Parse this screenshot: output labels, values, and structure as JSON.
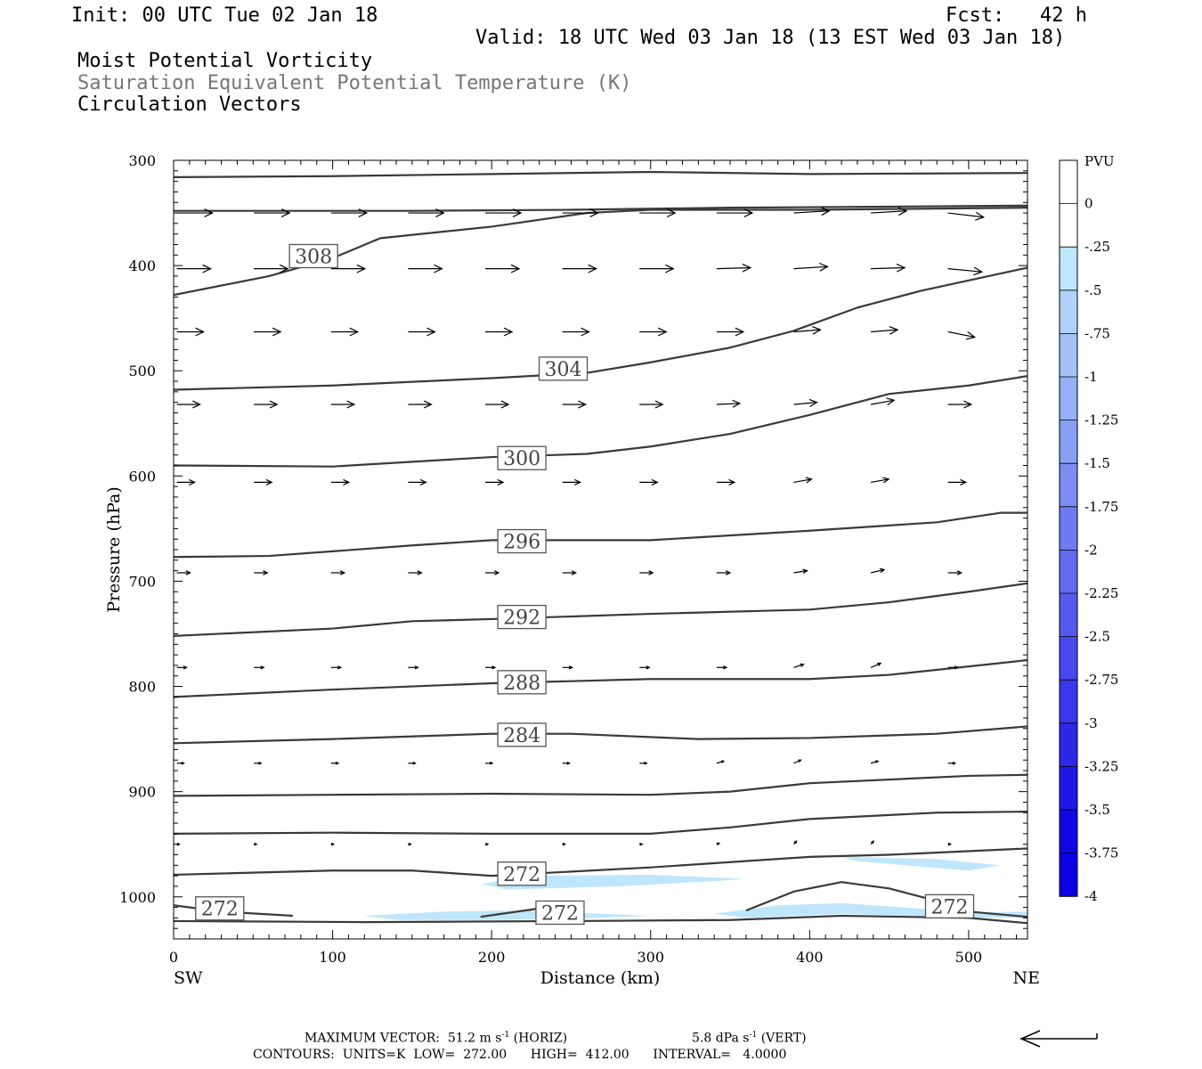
{
  "header": {
    "init": "Init: 00 UTC Tue 02 Jan 18",
    "fcst": "Fcst:   42 h",
    "valid": "Valid: 18 UTC Wed 03 Jan 18 (13 EST Wed 03 Jan 18)",
    "field1": "Moist Potential Vorticity",
    "field2": "Saturation Equivalent Potential Temperature (K)",
    "field3": "Circulation Vectors"
  },
  "footer": {
    "max_vector_label": "MAXIMUM VECTOR:",
    "max_horiz_value": "51.2 m s",
    "max_horiz_exp": "-1",
    "max_horiz_unit": "(HORIZ)",
    "max_vert_value": "5.8 dPa s",
    "max_vert_exp": "-1",
    "max_vert_unit": "(VERT)",
    "contours": "CONTOURS:  UNITS=K  LOW=  272.00      HIGH=  412.00      INTERVAL=   4.0000"
  },
  "chart_data": {
    "type": "cross-section",
    "xlabel": "Distance (km)",
    "ylabel": "Pressure (hPa)",
    "x_left_label": "SW",
    "x_right_label": "NE",
    "xlim": [
      0,
      537
    ],
    "ylim": [
      1040,
      300
    ],
    "x_ticks": [
      0,
      100,
      200,
      300,
      400,
      500
    ],
    "y_ticks": [
      300,
      400,
      500,
      600,
      700,
      800,
      900,
      1000
    ],
    "colorbar": {
      "title": "PVU",
      "levels": [
        "0",
        "-.25",
        "-.5",
        "-.75",
        "-1",
        "-1.25",
        "-1.5",
        "-1.75",
        "-2",
        "-2.25",
        "-2.5",
        "-2.75",
        "-3",
        "-3.25",
        "-3.5",
        "-3.75",
        "-4"
      ],
      "colors": [
        "#ffffff",
        "#ffffff",
        "#bfe6fb",
        "#b1d1f9",
        "#a4c0f7",
        "#97aff6",
        "#8a9ff4",
        "#7c8cf2",
        "#6f7cf1",
        "#626aef",
        "#5559ee",
        "#4848ec",
        "#3a37ea",
        "#2d27e8",
        "#2016e6",
        "#1306e5",
        "#0c00e5"
      ]
    },
    "contour_labels": [
      {
        "value": "308",
        "x": 88,
        "p": 391
      },
      {
        "value": "304",
        "x": 245,
        "p": 498
      },
      {
        "value": "300",
        "x": 219,
        "p": 583
      },
      {
        "value": "296",
        "x": 219,
        "p": 662
      },
      {
        "value": "292",
        "x": 219,
        "p": 734
      },
      {
        "value": "288",
        "x": 219,
        "p": 796
      },
      {
        "value": "284",
        "x": 219,
        "p": 846
      },
      {
        "value": "272",
        "x": 219,
        "p": 978
      },
      {
        "value": "272",
        "x": 29,
        "p": 1011
      },
      {
        "value": "272",
        "x": 243,
        "p": 1015
      },
      {
        "value": "272",
        "x": 488,
        "p": 1009
      }
    ],
    "isentropes": [
      [
        [
          0,
          316
        ],
        [
          100,
          315
        ],
        [
          200,
          313
        ],
        [
          300,
          311
        ],
        [
          400,
          313
        ],
        [
          537,
          312
        ]
      ],
      [
        [
          0,
          348
        ],
        [
          150,
          348
        ],
        [
          250,
          347
        ],
        [
          350,
          345
        ],
        [
          450,
          344
        ],
        [
          537,
          343
        ]
      ],
      [
        [
          0,
          428
        ],
        [
          60,
          410
        ],
        [
          100,
          393
        ],
        [
          130,
          374
        ],
        [
          200,
          363
        ],
        [
          260,
          350
        ],
        [
          300,
          347
        ],
        [
          400,
          347
        ],
        [
          537,
          345
        ]
      ],
      [
        [
          0,
          518
        ],
        [
          100,
          514
        ],
        [
          200,
          507
        ],
        [
          260,
          502
        ],
        [
          300,
          492
        ],
        [
          350,
          478
        ],
        [
          390,
          462
        ],
        [
          430,
          440
        ],
        [
          470,
          424
        ],
        [
          537,
          402
        ]
      ],
      [
        [
          0,
          590
        ],
        [
          100,
          591
        ],
        [
          200,
          582
        ],
        [
          260,
          579
        ],
        [
          300,
          572
        ],
        [
          350,
          560
        ],
        [
          400,
          542
        ],
        [
          450,
          522
        ],
        [
          500,
          514
        ],
        [
          537,
          505
        ]
      ],
      [
        [
          0,
          677
        ],
        [
          60,
          676
        ],
        [
          150,
          666
        ],
        [
          200,
          661
        ],
        [
          300,
          661
        ],
        [
          400,
          652
        ],
        [
          480,
          644
        ],
        [
          520,
          635
        ],
        [
          537,
          635
        ]
      ],
      [
        [
          0,
          752
        ],
        [
          100,
          745
        ],
        [
          150,
          738
        ],
        [
          200,
          736
        ],
        [
          300,
          731
        ],
        [
          400,
          727
        ],
        [
          450,
          720
        ],
        [
          500,
          710
        ],
        [
          537,
          702
        ]
      ],
      [
        [
          0,
          810
        ],
        [
          100,
          803
        ],
        [
          200,
          797
        ],
        [
          300,
          793
        ],
        [
          400,
          793
        ],
        [
          450,
          789
        ],
        [
          500,
          781
        ],
        [
          537,
          775
        ]
      ],
      [
        [
          0,
          854
        ],
        [
          100,
          850
        ],
        [
          200,
          845
        ],
        [
          250,
          845
        ],
        [
          330,
          850
        ],
        [
          400,
          849
        ],
        [
          480,
          845
        ],
        [
          537,
          838
        ]
      ],
      [
        [
          0,
          904
        ],
        [
          100,
          903
        ],
        [
          200,
          902
        ],
        [
          300,
          903
        ],
        [
          350,
          900
        ],
        [
          400,
          892
        ],
        [
          500,
          885
        ],
        [
          537,
          884
        ]
      ],
      [
        [
          0,
          940
        ],
        [
          100,
          939
        ],
        [
          200,
          940
        ],
        [
          300,
          940
        ],
        [
          350,
          934
        ],
        [
          400,
          926
        ],
        [
          480,
          920
        ],
        [
          537,
          919
        ]
      ],
      [
        [
          0,
          979
        ],
        [
          100,
          975
        ],
        [
          150,
          975
        ],
        [
          200,
          980
        ],
        [
          300,
          972
        ],
        [
          400,
          962
        ],
        [
          450,
          960
        ],
        [
          537,
          954
        ]
      ],
      [
        [
          0,
          1023
        ],
        [
          120,
          1024
        ],
        [
          250,
          1023
        ],
        [
          350,
          1022
        ],
        [
          420,
          1018
        ],
        [
          500,
          1020
        ],
        [
          537,
          1025
        ]
      ],
      [
        [
          0,
          1008
        ],
        [
          30,
          1014
        ],
        [
          75,
          1018
        ]
      ],
      [
        [
          193,
          1019
        ],
        [
          230,
          1011
        ],
        [
          243,
          1012
        ]
      ],
      [
        [
          360,
          1013
        ],
        [
          390,
          995
        ],
        [
          420,
          986
        ],
        [
          450,
          992
        ],
        [
          480,
          1004
        ],
        [
          500,
          1014
        ],
        [
          537,
          1019
        ]
      ]
    ],
    "shaded_regions": [
      [
        [
          194,
          988
        ],
        [
          220,
          980
        ],
        [
          300,
          979
        ],
        [
          360,
          983
        ],
        [
          340,
          985
        ],
        [
          280,
          990
        ],
        [
          210,
          993
        ]
      ],
      [
        [
          420,
          962
        ],
        [
          480,
          964
        ],
        [
          520,
          970
        ],
        [
          500,
          975
        ],
        [
          460,
          970
        ],
        [
          430,
          966
        ]
      ],
      [
        [
          120,
          1018
        ],
        [
          170,
          1014
        ],
        [
          220,
          1013
        ],
        [
          300,
          1018
        ],
        [
          250,
          1021
        ],
        [
          190,
          1022
        ],
        [
          140,
          1022
        ]
      ],
      [
        [
          340,
          1016
        ],
        [
          380,
          1008
        ],
        [
          420,
          1006
        ],
        [
          460,
          1010
        ],
        [
          500,
          1015
        ],
        [
          537,
          1014
        ],
        [
          537,
          1020
        ],
        [
          480,
          1019
        ],
        [
          420,
          1016
        ],
        [
          360,
          1020
        ]
      ]
    ],
    "vector_rows": [
      {
        "p": 350,
        "x0": 2,
        "dx": 48.5,
        "count": 11,
        "len": 40,
        "dp": [
          0,
          0,
          0,
          0,
          0,
          0,
          0,
          0,
          -2,
          -2,
          4
        ]
      },
      {
        "p": 403,
        "x0": 2,
        "dx": 48.5,
        "count": 11,
        "len": 38,
        "dp": [
          0,
          0,
          0,
          0,
          0,
          0,
          0,
          -1,
          -2,
          -1,
          3
        ]
      },
      {
        "p": 463,
        "x0": 2,
        "dx": 48.5,
        "count": 11,
        "len": 30,
        "dp": [
          0,
          0,
          0,
          0,
          0,
          0,
          0,
          0,
          -2,
          -2,
          5
        ]
      },
      {
        "p": 532,
        "x0": 2,
        "dx": 48.5,
        "count": 11,
        "len": 26,
        "dp": [
          0,
          0,
          0,
          0,
          0,
          0,
          0,
          -1,
          -2,
          -4,
          0
        ]
      },
      {
        "p": 606,
        "x0": 2,
        "dx": 48.5,
        "count": 11,
        "len": 20,
        "dp": [
          0,
          0,
          0,
          0,
          0,
          0,
          0,
          0,
          -3,
          -3,
          0
        ]
      },
      {
        "p": 692,
        "x0": 2,
        "dx": 48.5,
        "count": 11,
        "len": 15,
        "dp": [
          0,
          0,
          0,
          0,
          0,
          0,
          0,
          0,
          -2,
          -3,
          0
        ]
      },
      {
        "p": 782,
        "x0": 2,
        "dx": 48.5,
        "count": 11,
        "len": 11,
        "dp": [
          0,
          0,
          0,
          0,
          0,
          0,
          0,
          0,
          -3,
          -4,
          0
        ]
      },
      {
        "p": 873,
        "x0": 2,
        "dx": 48.5,
        "count": 11,
        "len": 8,
        "dp": [
          0,
          0,
          0,
          0,
          0,
          0,
          0,
          -2,
          -3,
          -2,
          0
        ]
      },
      {
        "p": 950,
        "x0": 2,
        "dx": 48.5,
        "count": 11,
        "len": 3,
        "dp": [
          0,
          0,
          0,
          0,
          0,
          0,
          0,
          -1,
          -3,
          -3,
          0
        ]
      }
    ]
  }
}
